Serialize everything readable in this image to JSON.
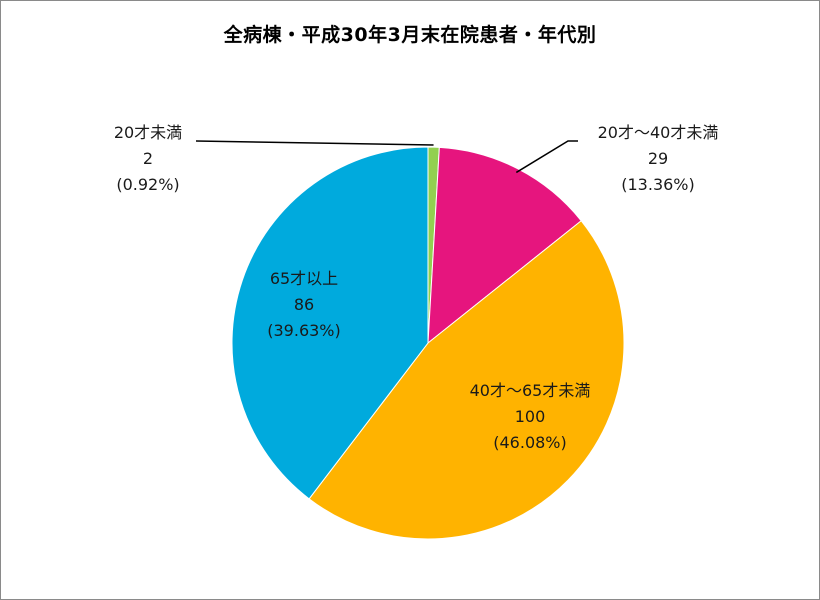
{
  "chart_data": {
    "type": "pie",
    "title": "全病棟・平成30年3月末在院患者・年代別",
    "slices": [
      {
        "category": "20才未満",
        "value": 2,
        "percent_label": "(0.92%)",
        "color": "#92D050"
      },
      {
        "category": "20才～40才未満",
        "value": 29,
        "percent_label": "(13.36%)",
        "color": "#E6157E"
      },
      {
        "category": "40才～65才未満",
        "value": 100,
        "percent_label": "(46.08%)",
        "color": "#FFB300"
      },
      {
        "category": "65才以上",
        "value": 86,
        "percent_label": "(39.63%)",
        "color": "#00AADD"
      }
    ],
    "legend": "none",
    "start_angle": "top",
    "direction": "clockwise"
  }
}
